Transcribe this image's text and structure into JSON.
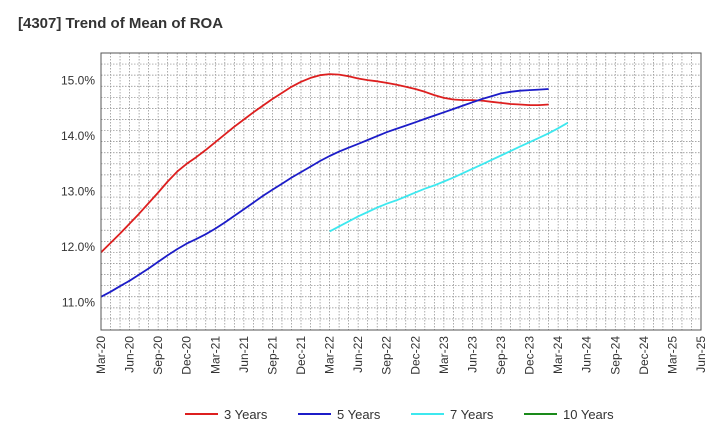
{
  "chart_data": {
    "type": "line",
    "title": "[4307]  Trend of Mean of ROA",
    "xlabel": "",
    "ylabel": "",
    "x_ticks": [
      "Mar-20",
      "Jun-20",
      "Sep-20",
      "Dec-20",
      "Mar-21",
      "Jun-21",
      "Sep-21",
      "Dec-21",
      "Mar-22",
      "Jun-22",
      "Sep-22",
      "Dec-22",
      "Mar-23",
      "Jun-23",
      "Sep-23",
      "Dec-23",
      "Mar-24",
      "Jun-24",
      "Sep-24",
      "Dec-24",
      "Mar-25",
      "Jun-25"
    ],
    "y_ticks": [
      "11.0%",
      "12.0%",
      "13.0%",
      "14.0%",
      "15.0%"
    ],
    "ylim": [
      10.5,
      15.5
    ],
    "grid": true,
    "legend_position": "bottom",
    "series": [
      {
        "name": "3 Years",
        "color": "#dd1f1f",
        "start_index": 0,
        "values": [
          11.9,
          12.07,
          12.24,
          12.42,
          12.6,
          12.79,
          12.98,
          13.18,
          13.36,
          13.5,
          13.62,
          13.75,
          13.89,
          14.03,
          14.17,
          14.3,
          14.43,
          14.55,
          14.67,
          14.78,
          14.89,
          14.98,
          15.05,
          15.1,
          15.12,
          15.11,
          15.08,
          15.04,
          15.01,
          14.99,
          14.96,
          14.93,
          14.89,
          14.85,
          14.8,
          14.74,
          14.69,
          14.66,
          14.65,
          14.65,
          14.64,
          14.62,
          14.6,
          14.58,
          14.57,
          14.56,
          14.56,
          14.57
        ]
      },
      {
        "name": "5 Years",
        "color": "#1c1cc8",
        "start_index": 0,
        "values": [
          11.1,
          11.19,
          11.29,
          11.39,
          11.5,
          11.61,
          11.73,
          11.85,
          11.96,
          12.06,
          12.14,
          12.23,
          12.33,
          12.44,
          12.56,
          12.68,
          12.8,
          12.92,
          13.03,
          13.14,
          13.25,
          13.35,
          13.45,
          13.55,
          13.64,
          13.72,
          13.79,
          13.86,
          13.93,
          14.0,
          14.07,
          14.13,
          14.19,
          14.25,
          14.31,
          14.37,
          14.43,
          14.49,
          14.55,
          14.61,
          14.67,
          14.72,
          14.77,
          14.8,
          14.82,
          14.83,
          14.84,
          14.85
        ]
      },
      {
        "name": "7 Years",
        "color": "#3de8ef",
        "start_index": 24,
        "values": [
          12.28,
          12.37,
          12.46,
          12.55,
          12.63,
          12.71,
          12.78,
          12.84,
          12.91,
          12.98,
          13.05,
          13.11,
          13.18,
          13.25,
          13.33,
          13.41,
          13.49,
          13.57,
          13.65,
          13.73,
          13.81,
          13.89,
          13.97,
          14.05,
          14.14,
          14.24
        ]
      },
      {
        "name": "10 Years",
        "color": "#1a8a1a",
        "start_index": 0,
        "values": []
      }
    ]
  }
}
